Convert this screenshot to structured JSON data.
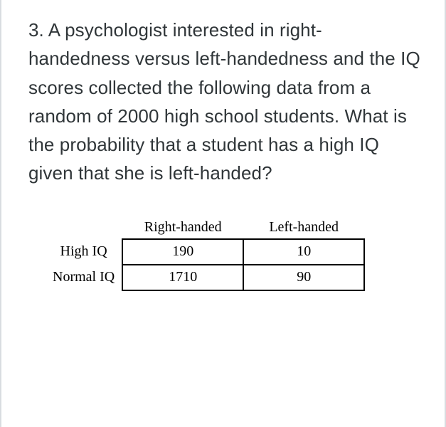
{
  "question": {
    "number": "3.",
    "text": "A psychologist interested in right-handedness versus left-handedness and the IQ scores collected the following data from a random of 2000 high school students. What is the probability that a student has a high IQ given that she is left-handed?"
  },
  "table": {
    "columns": [
      "Right-handed",
      "Left-handed"
    ],
    "row_labels": [
      "High IQ",
      "Normal IQ"
    ],
    "rows": [
      [
        "190",
        "10"
      ],
      [
        "1710",
        "90"
      ]
    ],
    "border_color": "#000000",
    "text_color": "#000000",
    "font_family": "Times New Roman",
    "cell_fontsize": 20,
    "header_fontsize": 20
  },
  "page_style": {
    "border_color": "#d9dde0",
    "background": "#ffffff",
    "question_text_color": "#303639",
    "question_fontsize": 26
  }
}
